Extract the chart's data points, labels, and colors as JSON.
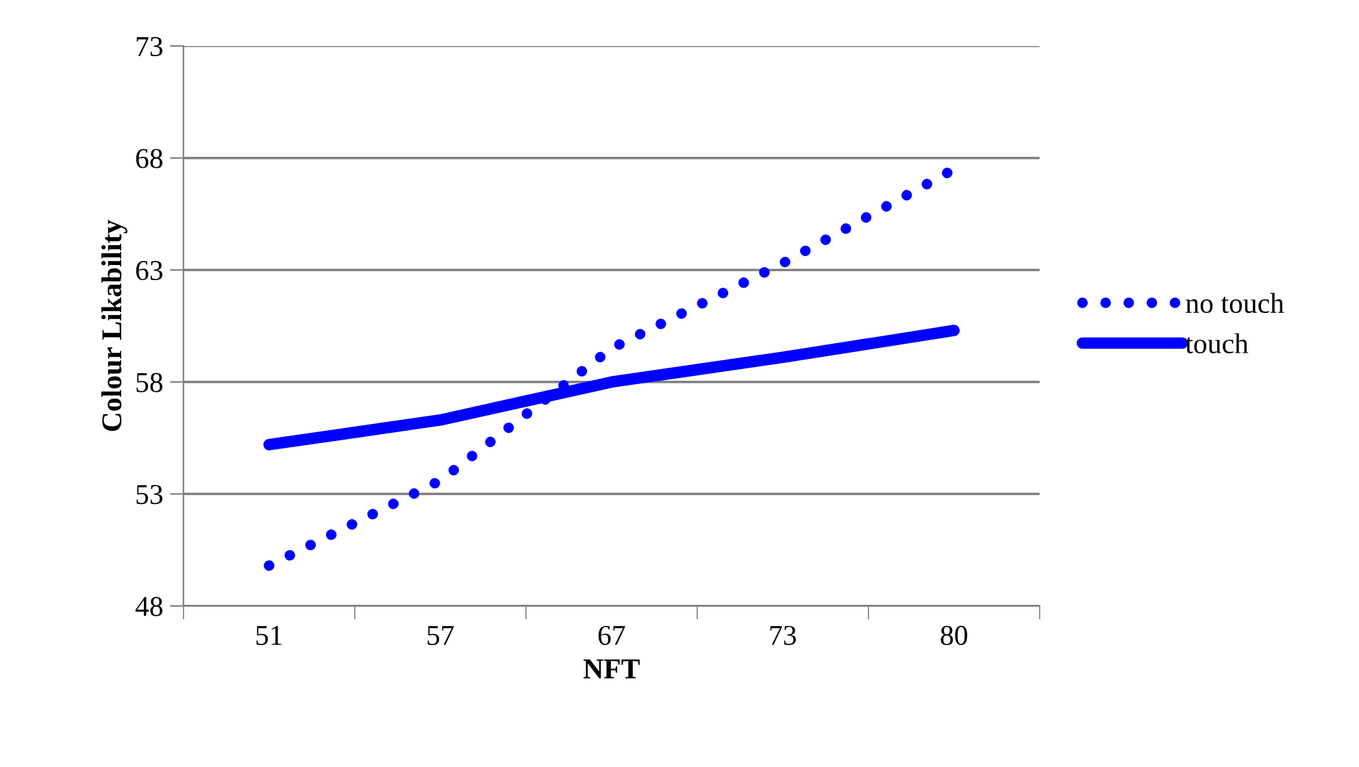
{
  "chart_data": {
    "type": "line",
    "xlabel": "NFT",
    "ylabel": "Colour Likability",
    "categories": [
      "51",
      "57",
      "67",
      "73",
      "80"
    ],
    "series": [
      {
        "name": "no touch",
        "color": "#0000ff",
        "line_style": "dotted",
        "values": [
          49.8,
          53.6,
          59.5,
          63.3,
          67.5
        ]
      },
      {
        "name": "touch",
        "color": "#0000ff",
        "line_style": "solid",
        "values": [
          55.2,
          56.3,
          58.0,
          59.1,
          60.3
        ]
      }
    ],
    "ylim": [
      48,
      73
    ],
    "yticks": [
      48,
      53,
      58,
      63,
      68,
      73
    ],
    "grid": "y",
    "legend": "right",
    "marker": "none"
  }
}
